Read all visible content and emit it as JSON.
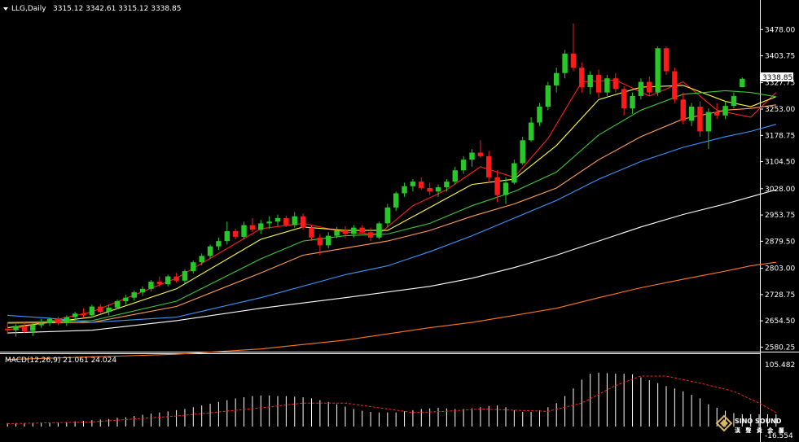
{
  "header": {
    "symbol": "LLG,Daily",
    "ohlc": "3315.12 3342.61 3315.12 3338.85"
  },
  "macd_header": "MACD(12,26,9) 21.061 24.024",
  "current_price_label": "3338.85",
  "logo": {
    "line1": "SINO SOUND",
    "line2": "漢 聲 貴 金 屬"
  },
  "colors": {
    "bull": "#28c828",
    "bear": "#ff1a1a",
    "ma5": "#ff2020",
    "ma10": "#ffff40",
    "ma20": "#3cc83c",
    "ma30": "#ffa050",
    "ma60": "#3c96ff",
    "ma120": "#ffffff",
    "ma250": "#ff7820",
    "macd_hist": "#ffffff",
    "macd_signal": "#ff2020"
  },
  "chart_data": [
    {
      "type": "candlestick",
      "title": "LLG,Daily",
      "price_axis_ticks": [
        "3478.00",
        "3403.75",
        "3327.75",
        "3253.00",
        "3178.75",
        "3104.50",
        "3028.00",
        "2953.75",
        "2879.50",
        "2803.00",
        "2728.75",
        "2654.50",
        "2580.25"
      ],
      "ylim": [
        2572,
        3520
      ],
      "candles": [
        [
          2632,
          2650,
          2618,
          2628
        ],
        [
          2628,
          2645,
          2610,
          2640
        ],
        [
          2638,
          2652,
          2620,
          2625
        ],
        [
          2626,
          2648,
          2612,
          2644
        ],
        [
          2642,
          2660,
          2635,
          2648
        ],
        [
          2648,
          2664,
          2640,
          2660
        ],
        [
          2660,
          2666,
          2642,
          2648
        ],
        [
          2648,
          2670,
          2640,
          2665
        ],
        [
          2665,
          2680,
          2655,
          2675
        ],
        [
          2675,
          2690,
          2663,
          2670
        ],
        [
          2670,
          2700,
          2664,
          2695
        ],
        [
          2695,
          2702,
          2675,
          2680
        ],
        [
          2680,
          2700,
          2670,
          2692
        ],
        [
          2692,
          2715,
          2688,
          2710
        ],
        [
          2710,
          2728,
          2700,
          2720
        ],
        [
          2720,
          2740,
          2712,
          2735
        ],
        [
          2735,
          2752,
          2725,
          2745
        ],
        [
          2745,
          2770,
          2738,
          2765
        ],
        [
          2765,
          2780,
          2750,
          2758
        ],
        [
          2758,
          2785,
          2752,
          2780
        ],
        [
          2780,
          2790,
          2762,
          2768
        ],
        [
          2768,
          2800,
          2760,
          2795
        ],
        [
          2795,
          2825,
          2788,
          2820
        ],
        [
          2820,
          2845,
          2812,
          2838
        ],
        [
          2838,
          2870,
          2830,
          2865
        ],
        [
          2865,
          2890,
          2855,
          2880
        ],
        [
          2880,
          2935,
          2870,
          2908
        ],
        [
          2908,
          2915,
          2885,
          2892
        ],
        [
          2892,
          2935,
          2885,
          2925
        ],
        [
          2925,
          2945,
          2905,
          2912
        ],
        [
          2912,
          2940,
          2900,
          2930
        ],
        [
          2930,
          2950,
          2915,
          2935
        ],
        [
          2935,
          2955,
          2922,
          2945
        ],
        [
          2945,
          2952,
          2920,
          2925
        ],
        [
          2925,
          2962,
          2918,
          2950
        ],
        [
          2950,
          2958,
          2912,
          2918
        ],
        [
          2918,
          2925,
          2880,
          2890
        ],
        [
          2890,
          2900,
          2840,
          2868
        ],
        [
          2868,
          2905,
          2860,
          2895
        ],
        [
          2895,
          2920,
          2888,
          2910
        ],
        [
          2910,
          2922,
          2888,
          2900
        ],
        [
          2900,
          2925,
          2890,
          2918
        ],
        [
          2918,
          2925,
          2900,
          2905
        ],
        [
          2905,
          2918,
          2880,
          2890
        ],
        [
          2890,
          2935,
          2885,
          2930
        ],
        [
          2930,
          2985,
          2920,
          2975
        ],
        [
          2975,
          3020,
          2965,
          3015
        ],
        [
          3015,
          3045,
          3005,
          3035
        ],
        [
          3035,
          3055,
          3020,
          3048
        ],
        [
          3048,
          3060,
          3025,
          3030
        ],
        [
          3030,
          3045,
          3010,
          3020
        ],
        [
          3020,
          3040,
          3005,
          3032
        ],
        [
          3032,
          3055,
          3020,
          3048
        ],
        [
          3048,
          3090,
          3040,
          3080
        ],
        [
          3080,
          3120,
          3070,
          3110
        ],
        [
          3110,
          3140,
          3090,
          3130
        ],
        [
          3130,
          3165,
          3115,
          3120
        ],
        [
          3120,
          3135,
          3045,
          3060
        ],
        [
          3060,
          3080,
          2990,
          3010
        ],
        [
          3010,
          3060,
          2985,
          3045
        ],
        [
          3045,
          3110,
          3040,
          3100
        ],
        [
          3100,
          3175,
          3095,
          3165
        ],
        [
          3165,
          3230,
          3160,
          3215
        ],
        [
          3215,
          3270,
          3205,
          3260
        ],
        [
          3260,
          3330,
          3250,
          3320
        ],
        [
          3320,
          3370,
          3300,
          3355
        ],
        [
          3355,
          3420,
          3340,
          3410
        ],
        [
          3410,
          3495,
          3360,
          3370
        ],
        [
          3370,
          3385,
          3300,
          3315
        ],
        [
          3315,
          3360,
          3295,
          3350
        ],
        [
          3350,
          3365,
          3285,
          3300
        ],
        [
          3300,
          3350,
          3290,
          3340
        ],
        [
          3340,
          3355,
          3300,
          3310
        ],
        [
          3310,
          3318,
          3235,
          3255
        ],
        [
          3255,
          3300,
          3240,
          3290
        ],
        [
          3290,
          3340,
          3280,
          3330
        ],
        [
          3330,
          3345,
          3290,
          3300
        ],
        [
          3300,
          3430,
          3290,
          3425
        ],
        [
          3425,
          3430,
          3350,
          3360
        ],
        [
          3360,
          3370,
          3270,
          3280
        ],
        [
          3280,
          3300,
          3210,
          3220
        ],
        [
          3220,
          3270,
          3205,
          3260
        ],
        [
          3260,
          3275,
          3175,
          3190
        ],
        [
          3190,
          3255,
          3140,
          3245
        ],
        [
          3245,
          3270,
          3225,
          3235
        ],
        [
          3235,
          3275,
          3225,
          3262
        ],
        [
          3262,
          3300,
          3255,
          3290
        ],
        [
          3315,
          3342.61,
          3315,
          3338.85
        ]
      ],
      "moving_averages": [
        {
          "name": "ma5",
          "points": [
            [
              0,
              2628
            ],
            [
              10,
              2680
            ],
            [
              20,
              2775
            ],
            [
              30,
              2915
            ],
            [
              35,
              2930
            ],
            [
              40,
              2905
            ],
            [
              44,
              2900
            ],
            [
              48,
              2980
            ],
            [
              52,
              3025
            ],
            [
              56,
              3090
            ],
            [
              60,
              3060
            ],
            [
              64,
              3170
            ],
            [
              68,
              3330
            ],
            [
              72,
              3335
            ],
            [
              76,
              3290
            ],
            [
              80,
              3330
            ],
            [
              84,
              3250
            ],
            [
              88,
              3230
            ],
            [
              91,
              3300
            ]
          ]
        },
        {
          "name": "ma10",
          "points": [
            [
              0,
              2635
            ],
            [
              10,
              2665
            ],
            [
              20,
              2745
            ],
            [
              30,
              2885
            ],
            [
              35,
              2920
            ],
            [
              40,
              2910
            ],
            [
              45,
              2910
            ],
            [
              50,
              2975
            ],
            [
              55,
              3040
            ],
            [
              60,
              3055
            ],
            [
              65,
              3150
            ],
            [
              70,
              3280
            ],
            [
              75,
              3315
            ],
            [
              80,
              3320
            ],
            [
              85,
              3275
            ],
            [
              88,
              3260
            ],
            [
              91,
              3288
            ]
          ]
        },
        {
          "name": "ma20",
          "points": [
            [
              0,
              2650
            ],
            [
              10,
              2655
            ],
            [
              20,
              2710
            ],
            [
              30,
              2830
            ],
            [
              35,
              2880
            ],
            [
              40,
              2895
            ],
            [
              45,
              2900
            ],
            [
              50,
              2930
            ],
            [
              55,
              2980
            ],
            [
              60,
              3020
            ],
            [
              65,
              3075
            ],
            [
              70,
              3180
            ],
            [
              75,
              3250
            ],
            [
              80,
              3295
            ],
            [
              85,
              3305
            ],
            [
              88,
              3300
            ],
            [
              91,
              3288
            ]
          ]
        },
        {
          "name": "ma30",
          "points": [
            [
              0,
              2648
            ],
            [
              10,
              2650
            ],
            [
              20,
              2695
            ],
            [
              30,
              2790
            ],
            [
              35,
              2840
            ],
            [
              40,
              2860
            ],
            [
              45,
              2880
            ],
            [
              50,
              2910
            ],
            [
              55,
              2950
            ],
            [
              60,
              2985
            ],
            [
              65,
              3030
            ],
            [
              70,
              3110
            ],
            [
              75,
              3175
            ],
            [
              80,
              3225
            ],
            [
              85,
              3250
            ],
            [
              88,
              3255
            ],
            [
              91,
              3265
            ]
          ]
        },
        {
          "name": "ma60",
          "points": [
            [
              0,
              2670
            ],
            [
              5,
              2662
            ],
            [
              10,
              2650
            ],
            [
              20,
              2665
            ],
            [
              30,
              2720
            ],
            [
              40,
              2785
            ],
            [
              45,
              2810
            ],
            [
              50,
              2850
            ],
            [
              55,
              2895
            ],
            [
              60,
              2945
            ],
            [
              65,
              2995
            ],
            [
              70,
              3055
            ],
            [
              75,
              3105
            ],
            [
              80,
              3145
            ],
            [
              85,
              3175
            ],
            [
              88,
              3190
            ],
            [
              91,
              3210
            ]
          ]
        },
        {
          "name": "ma120",
          "points": [
            [
              0,
              2620
            ],
            [
              10,
              2628
            ],
            [
              20,
              2655
            ],
            [
              30,
              2690
            ],
            [
              40,
              2720
            ],
            [
              50,
              2752
            ],
            [
              55,
              2775
            ],
            [
              60,
              2805
            ],
            [
              65,
              2840
            ],
            [
              70,
              2880
            ],
            [
              75,
              2920
            ],
            [
              80,
              2955
            ],
            [
              85,
              2985
            ],
            [
              88,
              3005
            ],
            [
              91,
              3025
            ]
          ]
        },
        {
          "name": "ma250",
          "points": [
            [
              0,
              2545
            ],
            [
              20,
              2560
            ],
            [
              30,
              2575
            ],
            [
              40,
              2600
            ],
            [
              50,
              2635
            ],
            [
              55,
              2650
            ],
            [
              60,
              2670
            ],
            [
              65,
              2690
            ],
            [
              70,
              2720
            ],
            [
              75,
              2748
            ],
            [
              80,
              2772
            ],
            [
              85,
              2795
            ],
            [
              88,
              2810
            ],
            [
              91,
              2820
            ]
          ]
        }
      ]
    },
    {
      "type": "bar",
      "title": "MACD(12,26,9) 21.061 24.024",
      "axis_ticks": [
        "105.482",
        "-16.554"
      ],
      "ylim": [
        -16.554,
        105.482
      ],
      "histogram": [
        6,
        6,
        6,
        6,
        6,
        6,
        7,
        8,
        9,
        10,
        11,
        12,
        13,
        15,
        16,
        18,
        20,
        22,
        24,
        26,
        28,
        30,
        33,
        36,
        39,
        42,
        45,
        48,
        50,
        52,
        53,
        53,
        52,
        52,
        51,
        50,
        48,
        45,
        42,
        38,
        34,
        30,
        27,
        25,
        24,
        24,
        24,
        26,
        28,
        30,
        31,
        32,
        31,
        30,
        30,
        31,
        33,
        35,
        36,
        33,
        28,
        25,
        25,
        28,
        33,
        40,
        52,
        65,
        80,
        90,
        92,
        91,
        90,
        90,
        89,
        84,
        79,
        74,
        69,
        65,
        60,
        54,
        48,
        38,
        32,
        27,
        23,
        21,
        21,
        21,
        21,
        21
      ],
      "signal": [
        [
          0,
          5
        ],
        [
          10,
          8
        ],
        [
          20,
          18
        ],
        [
          30,
          32
        ],
        [
          35,
          40
        ],
        [
          40,
          40
        ],
        [
          45,
          30
        ],
        [
          48,
          24
        ],
        [
          52,
          26
        ],
        [
          56,
          30
        ],
        [
          60,
          28
        ],
        [
          64,
          26
        ],
        [
          68,
          40
        ],
        [
          72,
          70
        ],
        [
          75,
          86
        ],
        [
          78,
          86
        ],
        [
          82,
          74
        ],
        [
          86,
          60
        ],
        [
          89,
          40
        ],
        [
          91,
          24
        ]
      ]
    }
  ]
}
